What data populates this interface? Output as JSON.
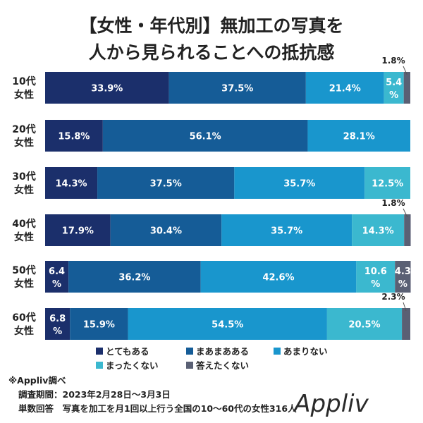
{
  "title_lines": [
    "【女性・年代別】無加工の写真を",
    "人から見られることへの抵抗感"
  ],
  "chart_data": {
    "type": "bar",
    "orientation": "horizontal",
    "stacked": true,
    "categories": [
      "10代\n女性",
      "20代\n女性",
      "30代\n女性",
      "40代\n女性",
      "50代\n女性",
      "60代\n女性"
    ],
    "series": [
      {
        "name": "とてもある",
        "color": "#1b2f6b",
        "values": [
          33.9,
          15.8,
          14.3,
          17.9,
          6.4,
          6.8
        ]
      },
      {
        "name": "まあまあある",
        "color": "#155c97",
        "values": [
          37.5,
          56.1,
          37.5,
          30.4,
          36.2,
          15.9
        ]
      },
      {
        "name": "あまりない",
        "color": "#1996cd",
        "values": [
          21.4,
          28.1,
          35.7,
          35.7,
          42.6,
          54.5
        ]
      },
      {
        "name": "まったくない",
        "color": "#3bb8cf",
        "values": [
          5.4,
          0,
          12.5,
          14.3,
          10.6,
          20.5
        ]
      },
      {
        "name": "答えたくない",
        "color": "#5a6074",
        "values": [
          1.8,
          0,
          0,
          1.8,
          4.3,
          2.3
        ]
      }
    ],
    "unit": "%",
    "xlim": [
      0,
      100
    ],
    "legend_position": "bottom"
  },
  "footer": {
    "source": "※Appliv調べ",
    "period": "調査期間：2023年2月28日～3月3日",
    "method": "単数回答　写真を加工を月1回以上行う全国の10～60代の女性316人"
  },
  "logo": "Appliv"
}
